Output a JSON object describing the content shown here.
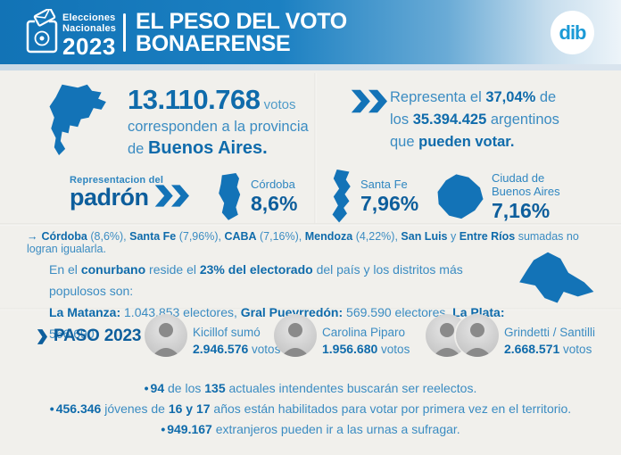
{
  "colors": {
    "accent": "#1373b7",
    "accent_dark": "#0d5e9c",
    "text_blue": "#3b8cc2",
    "header_gradient_start": "#1273b6",
    "header_gradient_end": "#edf4f9",
    "paper": "#f1f0ec",
    "logo_blue": "#1b9ad6"
  },
  "header": {
    "event_line1": "Elecciones",
    "event_line2": "Nacionales",
    "event_year": "2023",
    "title_line1": "EL PESO DEL VOTO",
    "title_line2": "BONAERENSE",
    "logo": "dib"
  },
  "votes": {
    "number": "13.110.768",
    "unit": " votos",
    "line2": "corresponden a la provincia",
    "line3_prefix": "de ",
    "line3_bold": "Buenos Aires."
  },
  "share": {
    "line1": [
      "Representa el ",
      {
        "t": "37,04%",
        "b": true
      },
      " de"
    ],
    "line2": [
      "los ",
      {
        "t": "35.394.425",
        "b": true
      },
      " argentinos"
    ],
    "line3": [
      "que ",
      {
        "t": "pueden votar.",
        "b": true
      }
    ]
  },
  "padron": {
    "label_small": "Representacion del",
    "label_big": "padrón",
    "items": [
      {
        "name": "Córdoba",
        "pct": "8,6%"
      },
      {
        "name": "Santa Fe",
        "pct": "7,96%"
      },
      {
        "name": "Ciudad de",
        "name2": "Buenos Aires",
        "pct": "7,16%"
      }
    ]
  },
  "comparison": {
    "arrow": "→",
    "segments": [
      {
        "t": "Córdoba",
        "b": true
      },
      " (8,6%), ",
      {
        "t": "Santa Fe",
        "b": true
      },
      " (7,96%), ",
      {
        "t": "CABA",
        "b": true
      },
      " (7,16%), ",
      {
        "t": "Mendoza",
        "b": true
      },
      " (4,22%), ",
      {
        "t": "San Luis",
        "b": true
      },
      " y ",
      {
        "t": "Entre Ríos",
        "b": true
      },
      " sumadas no logran igualarla."
    ]
  },
  "conurbano": {
    "line1": [
      "En el ",
      {
        "t": "conurbano",
        "b": true
      },
      " reside el ",
      {
        "t": "23% del electorado",
        "b": true
      },
      " del país y los distritos más populosos son:"
    ],
    "line2": [
      {
        "t": "La Matanza:",
        "b": true
      },
      " 1.043.853 electores, ",
      {
        "t": "Gral Pueyrredón:",
        "b": true
      },
      " 569.590 electores, ",
      {
        "t": "La Plata:",
        "b": true
      },
      " 566.690"
    ]
  },
  "paso": {
    "label": "PASO 2023",
    "candidates": [
      {
        "line1": "Kicillof sumó",
        "votes": "2.946.576",
        "unit": " votos"
      },
      {
        "line1": "Carolina Piparo",
        "votes": "1.956.680",
        "unit": " votos"
      },
      {
        "line1": "Grindetti / Santilli",
        "votes": "2.668.571",
        "unit": " votos"
      }
    ]
  },
  "facts": {
    "bullet": "•",
    "f1": [
      {
        "t": "94",
        "b": true
      },
      " de los ",
      {
        "t": "135",
        "b": true
      },
      " actuales intendentes buscarán ser reelectos."
    ],
    "f2": [
      {
        "t": "456.346",
        "b": true
      },
      " jóvenes de ",
      {
        "t": "16 y 17",
        "b": true
      },
      " años están habilitados para votar por primera vez en el territorio."
    ],
    "f3": [
      {
        "t": "949.167",
        "b": true
      },
      " extranjeros pueden ir a las urnas a sufragar."
    ]
  }
}
